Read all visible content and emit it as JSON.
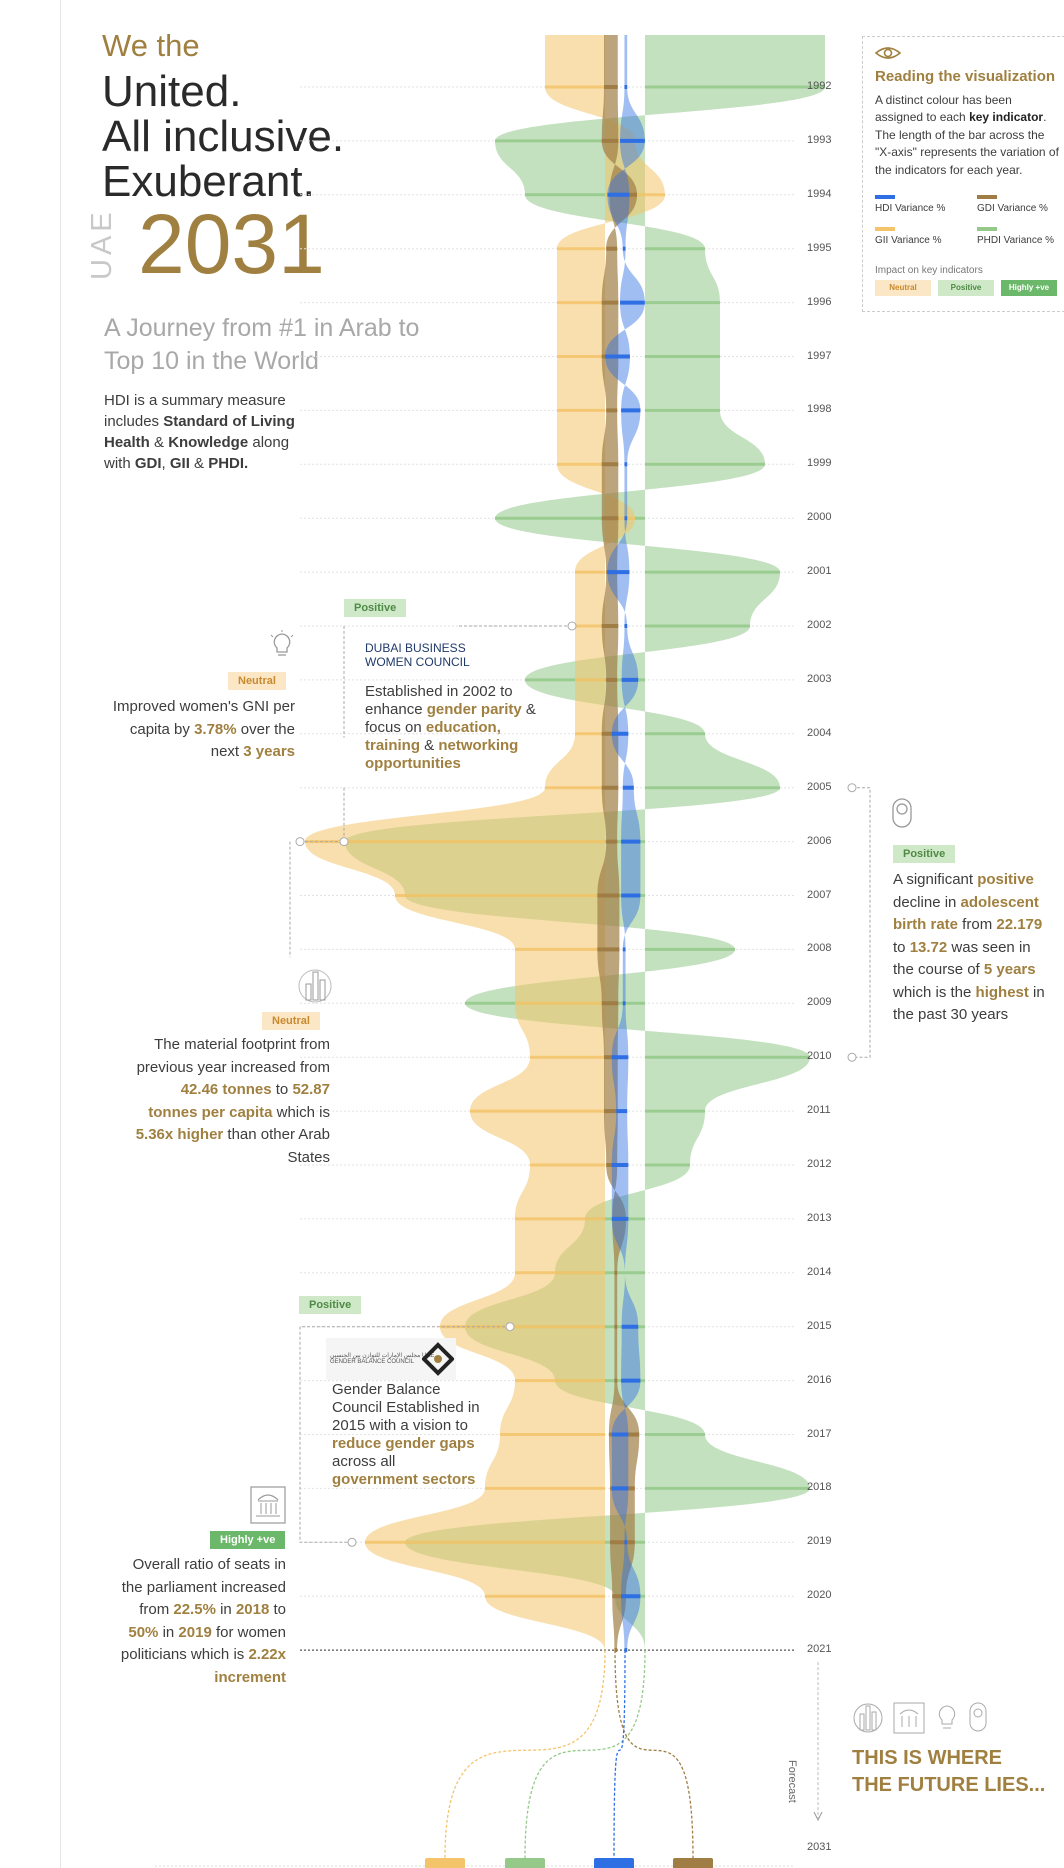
{
  "header": {
    "we_the": "We the",
    "lines": [
      "United.",
      "All inclusive.",
      "Exuberant."
    ],
    "country": "UAE",
    "year": "2031",
    "subtitle": "A Journey from #1 in Arab to Top 10 in the World",
    "intro_parts": [
      "HDI is a summary measure includes ",
      "Standard of Living Health",
      " & ",
      "Knowledge",
      " along with ",
      "GDI",
      ", ",
      "GII",
      " & ",
      "PHDI."
    ]
  },
  "legend": {
    "title": "Reading the visualization",
    "desc_a": "A distinct colour has been assigned to each ",
    "desc_b": "key indicator",
    "desc_c": ". The length of the bar across the \"X-axis\" represents the variation of the indicators for each year.",
    "items": [
      {
        "label": "HDI Variance %",
        "color": "#2f6fe4"
      },
      {
        "label": "GDI Variance %",
        "color": "#a07d45"
      },
      {
        "label": "GII Variance %",
        "color": "#f3c46a"
      },
      {
        "label": "PHDI Variance %",
        "color": "#94c98a"
      }
    ],
    "impact_label": "Impact on key indicators",
    "impacts": [
      "Neutral",
      "Positive",
      "Highly +ve"
    ]
  },
  "annotations": {
    "a2002_tag": "Positive",
    "a2002_logo_1": "DUBAI BUSINESS",
    "a2002_logo_2": "WOMEN COUNCIL",
    "a2002_text": [
      "Established in 2002 to enhance ",
      "gender parity",
      " & focus on ",
      "education, training",
      " & ",
      "networking opportunities"
    ],
    "a2005_tag": "Neutral",
    "a2005_text": [
      "Improved women's GNI per capita by ",
      "3.78%",
      " over the next ",
      "3 years"
    ],
    "a2006_tag": "Positive",
    "a2006_text": [
      "A significant ",
      "positive",
      " decline in ",
      "adolescent birth rate",
      " from ",
      "22.179",
      " to ",
      "13.72",
      " was seen in the course of ",
      "5 years",
      " which is the ",
      "highest",
      " in the past 30 years"
    ],
    "a2010_tag": "Neutral",
    "a2010_text": [
      "The material footprint from previous year increased from ",
      "42.46 tonnes",
      " to ",
      "52.87 tonnes per capita",
      " which is ",
      "5.36x higher",
      " than other Arab States"
    ],
    "a2015_tag": "Positive",
    "a2015_text": [
      "Gender Balance Council Established in 2015 with a vision to ",
      "reduce gender gaps",
      " across all ",
      "government sectors"
    ],
    "a2015_logo": "مجلس الإمارات للتوازن بين الجنسين  UAE GENDER BALANCE COUNCIL",
    "a2019_tag": "Highly +ve",
    "a2019_text": [
      "Overall ratio of seats in the parliament increased from ",
      "22.5%",
      " in ",
      "2018",
      " to ",
      "50%",
      " in ",
      "2019",
      " for women politicians which is ",
      "2.22x increment"
    ]
  },
  "footer": {
    "forecast_label": "Forecast",
    "future_1": "THIS IS WHERE",
    "future_2": "THE FUTURE LIES..."
  },
  "chart_data": {
    "type": "area",
    "title": "",
    "x_label": "",
    "y_label": "",
    "years": [
      1992,
      1993,
      1994,
      1995,
      1996,
      1997,
      1998,
      1999,
      2000,
      2001,
      2002,
      2003,
      2004,
      2005,
      2006,
      2007,
      2008,
      2009,
      2010,
      2011,
      2012,
      2013,
      2014,
      2015,
      2016,
      2017,
      2018,
      2019,
      2020,
      2021
    ],
    "forecast_year": 2031,
    "units": "relative variance (0-1 of max bar length)",
    "series": [
      {
        "name": "HDI Variance %",
        "color": "#2f6fe4",
        "values": [
          0.02,
          0.18,
          -0.16,
          -0.02,
          0.18,
          -0.18,
          0.14,
          0.02,
          0.02,
          -0.16,
          0.02,
          0.12,
          -0.12,
          0.08,
          0.14,
          0.14,
          -0.02,
          -0.02,
          -0.12,
          -0.08,
          -0.12,
          -0.12,
          0.0,
          0.12,
          0.14,
          -0.12,
          -0.12,
          0.02,
          0.14,
          0.02
        ]
      },
      {
        "name": "GDI Variance %",
        "color": "#a07d45",
        "values": [
          -0.1,
          -0.12,
          0.2,
          -0.08,
          -0.12,
          -0.12,
          -0.08,
          -0.12,
          -0.12,
          -0.08,
          -0.12,
          -0.08,
          -0.12,
          -0.12,
          -0.08,
          -0.16,
          -0.16,
          -0.12,
          -0.1,
          -0.1,
          -0.08,
          0.1,
          0.02,
          0.02,
          0.02,
          0.22,
          0.18,
          0.18,
          0.1,
          0.02
        ]
      },
      {
        "name": "GII Variance %",
        "color": "#f3c46a",
        "values": [
          -0.2,
          0.1,
          0.2,
          -0.16,
          -0.16,
          -0.16,
          -0.16,
          -0.16,
          0.1,
          -0.1,
          -0.1,
          -0.1,
          -0.1,
          -0.2,
          -1.0,
          -0.7,
          -0.3,
          -0.3,
          -0.25,
          -0.45,
          -0.25,
          -0.3,
          -0.3,
          -0.55,
          -0.3,
          -0.35,
          -0.4,
          -0.8,
          -0.4,
          0.0
        ]
      },
      {
        "name": "PHDI Variance %",
        "color": "#94c98a",
        "values": [
          0.6,
          -0.5,
          -0.4,
          0.2,
          0.25,
          0.25,
          0.25,
          0.4,
          -0.5,
          0.45,
          0.35,
          -0.4,
          0.2,
          0.45,
          -1.0,
          -0.8,
          0.3,
          -0.6,
          0.55,
          0.2,
          0.15,
          -0.2,
          -0.3,
          -0.6,
          -0.3,
          0.2,
          0.55,
          -0.8,
          -0.1,
          0.0
        ]
      }
    ]
  }
}
